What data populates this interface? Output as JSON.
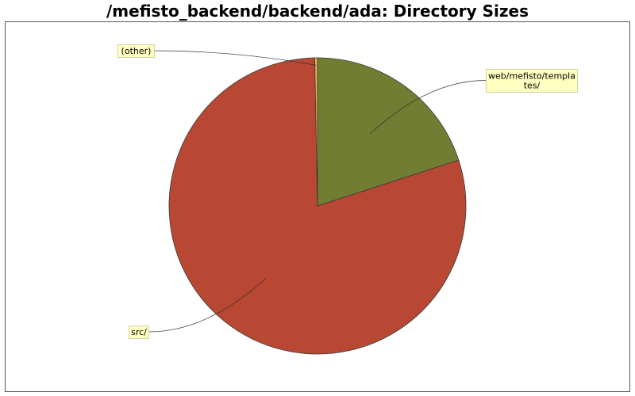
{
  "chart_data": {
    "type": "pie",
    "title": "/mefisto_backend/backend/ada: Directory Sizes",
    "slices": [
      {
        "label": "web/mefisto/templa\ntes/",
        "value": 20.0,
        "color": "#717d32"
      },
      {
        "label": "src/",
        "value": 79.7,
        "color": "#b84733"
      },
      {
        "label": "(other)",
        "value": 0.3,
        "color": "#e6b04b"
      }
    ]
  }
}
